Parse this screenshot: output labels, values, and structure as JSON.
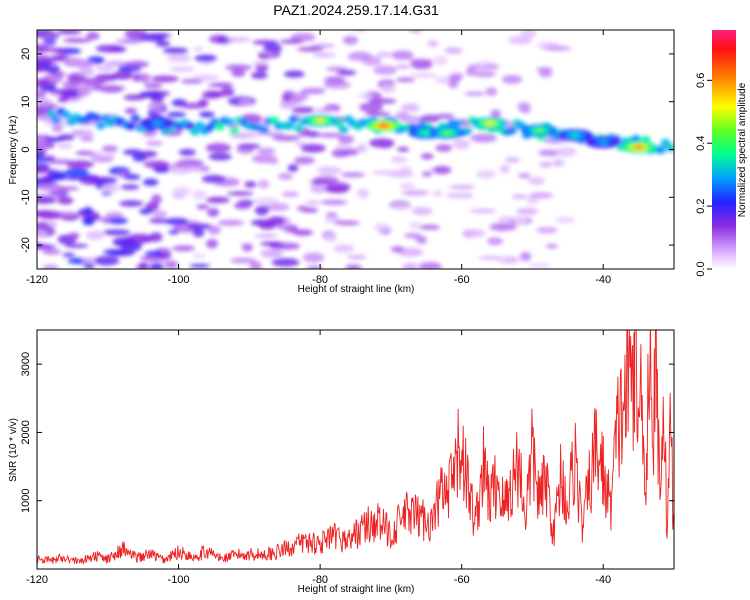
{
  "title": "PAZ1.2024.259.17.14.G31",
  "chart_data": [
    {
      "type": "heatmap",
      "xlabel": "Height of straight line (km)",
      "ylabel": "Frequency (Hz)",
      "xlim": [
        -120,
        -30
      ],
      "ylim": [
        -25,
        25
      ],
      "xticks": [
        -120,
        -100,
        -80,
        -60,
        -40
      ],
      "yticks": [
        -20,
        -10,
        0,
        10,
        20
      ],
      "colorbar": {
        "label": "Normalized spectral amplitude",
        "range": [
          0.0,
          0.76
        ],
        "ticks": [
          0.0,
          0.2,
          0.4,
          0.6
        ]
      },
      "ridge": [
        {
          "x": -118,
          "y": 7
        },
        {
          "x": -110,
          "y": 6
        },
        {
          "x": -100,
          "y": 5
        },
        {
          "x": -90,
          "y": 5
        },
        {
          "x": -80,
          "y": 5.5
        },
        {
          "x": -72,
          "y": 5
        },
        {
          "x": -65,
          "y": 4
        },
        {
          "x": -58,
          "y": 5
        },
        {
          "x": -50,
          "y": 4
        },
        {
          "x": -42,
          "y": 3
        },
        {
          "x": -35,
          "y": 1
        },
        {
          "x": -30,
          "y": 0.5
        }
      ],
      "peaks": [
        {
          "x": -103,
          "y": 5.5,
          "value": 0.35
        },
        {
          "x": -80,
          "y": 6,
          "value": 0.6
        },
        {
          "x": -71,
          "y": 5,
          "value": 0.75
        },
        {
          "x": -65,
          "y": 3.5,
          "value": 0.45
        },
        {
          "x": -62,
          "y": 3.5,
          "value": 0.5
        },
        {
          "x": -56,
          "y": 5.5,
          "value": 0.6
        },
        {
          "x": -49,
          "y": 4,
          "value": 0.5
        },
        {
          "x": -44,
          "y": 3,
          "value": 0.4
        },
        {
          "x": -40,
          "y": 1.5,
          "value": 0.35
        },
        {
          "x": -35,
          "y": 0.5,
          "value": 0.7
        }
      ]
    },
    {
      "type": "line",
      "xlabel": "Height of straight line (km)",
      "ylabel": "SNR (10 * v/v)",
      "xlim": [
        -120,
        -30
      ],
      "ylim": [
        0,
        3500
      ],
      "xticks": [
        -120,
        -100,
        -80,
        -60,
        -40
      ],
      "yticks": [
        1000,
        2000,
        3000
      ],
      "series": [
        {
          "color": "#ee2222",
          "x": [
            -120,
            -118,
            -116,
            -114,
            -112,
            -110,
            -108,
            -106,
            -104,
            -102,
            -100,
            -98,
            -96,
            -94,
            -92,
            -90,
            -88,
            -86,
            -84,
            -82,
            -80,
            -78,
            -76,
            -74,
            -72,
            -70,
            -68,
            -66,
            -64,
            -63,
            -62,
            -61,
            -60,
            -59,
            -58,
            -57,
            -56,
            -55,
            -54,
            -53,
            -52,
            -51,
            -50,
            -49,
            -48,
            -47,
            -46,
            -45,
            -44,
            -43,
            -42,
            -41,
            -40,
            -39,
            -38,
            -37,
            -36,
            -35.5,
            -35,
            -34.5,
            -34,
            -33.5,
            -33,
            -32.5,
            -32,
            -31.5,
            -31,
            -30.5,
            -30
          ],
          "values": [
            150,
            120,
            180,
            100,
            200,
            140,
            300,
            160,
            220,
            130,
            250,
            180,
            260,
            150,
            200,
            220,
            210,
            250,
            330,
            400,
            380,
            460,
            420,
            600,
            700,
            520,
            800,
            750,
            680,
            1150,
            1000,
            1400,
            1850,
            1100,
            700,
            1500,
            1000,
            1300,
            900,
            1200,
            1600,
            800,
            1700,
            1000,
            1300,
            500,
            1400,
            900,
            1700,
            600,
            1200,
            1800,
            1400,
            900,
            2000,
            2500,
            2800,
            3500,
            1900,
            3000,
            900,
            3450,
            2000,
            2800,
            1200,
            2700,
            600,
            2200,
            400
          ]
        }
      ]
    }
  ]
}
